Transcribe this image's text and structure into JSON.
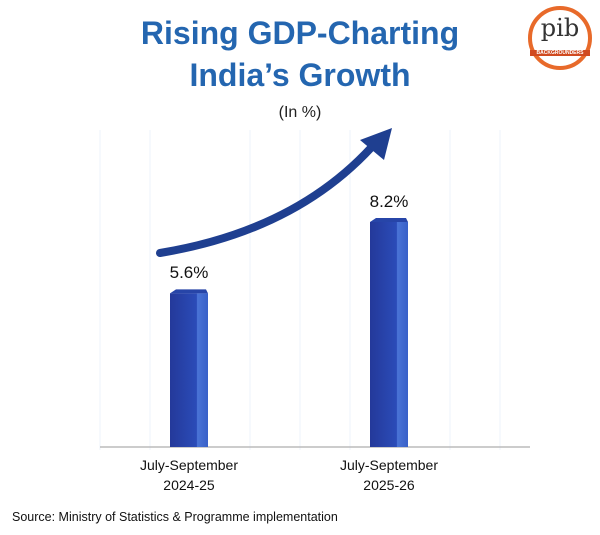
{
  "chart_data": {
    "type": "bar",
    "title": [
      "Rising GDP-Charting",
      "India’s Growth"
    ],
    "subtitle": "(In %)",
    "categories": [
      "July-September 2024-25",
      "July-September 2025-26"
    ],
    "values": [
      5.6,
      8.2
    ],
    "value_labels": [
      "5.6%",
      "8.2%"
    ],
    "color": "#2745a8",
    "source": "Source: Ministry of Statistics & Programme implementation"
  },
  "logo": {
    "text": "pib",
    "caption": "BACKGROUNDERS"
  }
}
